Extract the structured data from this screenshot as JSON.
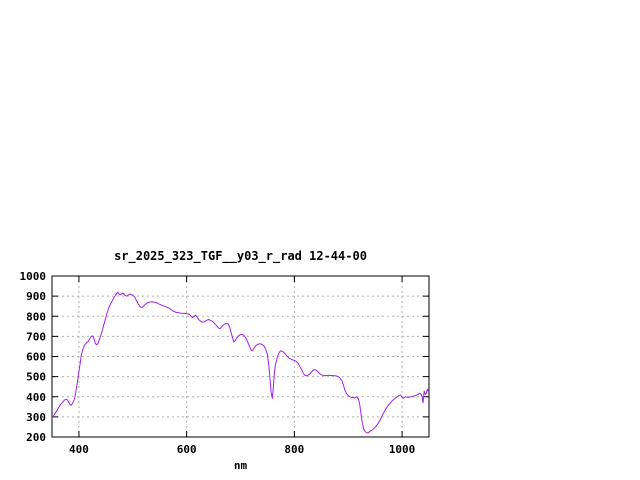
{
  "chart_data": {
    "type": "line",
    "title": "sr_2025_323_TGF__y03_r_rad 12-44-00",
    "xlabel": "nm",
    "ylabel": "",
    "xlim": [
      350,
      1050
    ],
    "ylim": [
      200,
      1000
    ],
    "xticks": [
      400,
      600,
      800,
      1000
    ],
    "yticks": [
      200,
      300,
      400,
      500,
      600,
      700,
      800,
      900,
      1000
    ],
    "grid": true,
    "legend_position": "none",
    "series": [
      {
        "name": "sr_2025_323_TGF__y03_r_rad",
        "color": "#a020f0",
        "points": [
          [
            350,
            295
          ],
          [
            353,
            305
          ],
          [
            356,
            318
          ],
          [
            359,
            330
          ],
          [
            362,
            345
          ],
          [
            365,
            358
          ],
          [
            368,
            368
          ],
          [
            371,
            378
          ],
          [
            374,
            385
          ],
          [
            377,
            388
          ],
          [
            380,
            378
          ],
          [
            383,
            362
          ],
          [
            386,
            358
          ],
          [
            389,
            372
          ],
          [
            392,
            390
          ],
          [
            394,
            420
          ],
          [
            396,
            455
          ],
          [
            398,
            490
          ],
          [
            400,
            525
          ],
          [
            402,
            560
          ],
          [
            404,
            600
          ],
          [
            406,
            625
          ],
          [
            408,
            640
          ],
          [
            410,
            655
          ],
          [
            412,
            662
          ],
          [
            414,
            668
          ],
          [
            417,
            675
          ],
          [
            420,
            688
          ],
          [
            423,
            700
          ],
          [
            425,
            703
          ],
          [
            427,
            697
          ],
          [
            429,
            678
          ],
          [
            431,
            663
          ],
          [
            433,
            658
          ],
          [
            435,
            663
          ],
          [
            437,
            678
          ],
          [
            440,
            700
          ],
          [
            443,
            725
          ],
          [
            446,
            755
          ],
          [
            449,
            785
          ],
          [
            452,
            812
          ],
          [
            455,
            838
          ],
          [
            458,
            858
          ],
          [
            461,
            872
          ],
          [
            464,
            888
          ],
          [
            467,
            900
          ],
          [
            470,
            912
          ],
          [
            472,
            920
          ],
          [
            474,
            912
          ],
          [
            476,
            906
          ],
          [
            479,
            910
          ],
          [
            482,
            915
          ],
          [
            484,
            908
          ],
          [
            486,
            903
          ],
          [
            489,
            900
          ],
          [
            492,
            906
          ],
          [
            495,
            910
          ],
          [
            498,
            907
          ],
          [
            501,
            903
          ],
          [
            504,
            893
          ],
          [
            507,
            878
          ],
          [
            510,
            862
          ],
          [
            513,
            850
          ],
          [
            516,
            843
          ],
          [
            519,
            847
          ],
          [
            522,
            856
          ],
          [
            525,
            863
          ],
          [
            528,
            868
          ],
          [
            532,
            871
          ],
          [
            536,
            872
          ],
          [
            540,
            870
          ],
          [
            544,
            868
          ],
          [
            548,
            862
          ],
          [
            552,
            857
          ],
          [
            556,
            852
          ],
          [
            560,
            849
          ],
          [
            564,
            844
          ],
          [
            568,
            840
          ],
          [
            572,
            831
          ],
          [
            576,
            824
          ],
          [
            580,
            820
          ],
          [
            585,
            817
          ],
          [
            590,
            815
          ],
          [
            595,
            814
          ],
          [
            600,
            813
          ],
          [
            605,
            810
          ],
          [
            608,
            800
          ],
          [
            611,
            794
          ],
          [
            614,
            800
          ],
          [
            617,
            806
          ],
          [
            620,
            793
          ],
          [
            623,
            782
          ],
          [
            626,
            776
          ],
          [
            629,
            770
          ],
          [
            632,
            772
          ],
          [
            635,
            776
          ],
          [
            638,
            781
          ],
          [
            641,
            784
          ],
          [
            644,
            780
          ],
          [
            647,
            776
          ],
          [
            650,
            770
          ],
          [
            653,
            760
          ],
          [
            656,
            752
          ],
          [
            659,
            742
          ],
          [
            662,
            738
          ],
          [
            665,
            748
          ],
          [
            668,
            756
          ],
          [
            671,
            762
          ],
          [
            674,
            765
          ],
          [
            677,
            762
          ],
          [
            680,
            745
          ],
          [
            683,
            715
          ],
          [
            686,
            685
          ],
          [
            688,
            672
          ],
          [
            690,
            678
          ],
          [
            693,
            692
          ],
          [
            696,
            702
          ],
          [
            699,
            708
          ],
          [
            702,
            710
          ],
          [
            705,
            708
          ],
          [
            708,
            700
          ],
          [
            711,
            688
          ],
          [
            714,
            668
          ],
          [
            717,
            648
          ],
          [
            720,
            630
          ],
          [
            723,
            632
          ],
          [
            726,
            645
          ],
          [
            729,
            655
          ],
          [
            732,
            660
          ],
          [
            735,
            663
          ],
          [
            738,
            662
          ],
          [
            741,
            658
          ],
          [
            744,
            650
          ],
          [
            747,
            635
          ],
          [
            750,
            610
          ],
          [
            753,
            550
          ],
          [
            755,
            480
          ],
          [
            757,
            420
          ],
          [
            759,
            392
          ],
          [
            761,
            450
          ],
          [
            763,
            520
          ],
          [
            765,
            560
          ],
          [
            768,
            592
          ],
          [
            771,
            615
          ],
          [
            774,
            628
          ],
          [
            777,
            627
          ],
          [
            780,
            621
          ],
          [
            783,
            614
          ],
          [
            786,
            603
          ],
          [
            789,
            595
          ],
          [
            792,
            589
          ],
          [
            795,
            585
          ],
          [
            798,
            582
          ],
          [
            801,
            580
          ],
          [
            804,
            575
          ],
          [
            807,
            566
          ],
          [
            810,
            552
          ],
          [
            813,
            537
          ],
          [
            816,
            520
          ],
          [
            819,
            508
          ],
          [
            822,
            504
          ],
          [
            825,
            506
          ],
          [
            828,
            512
          ],
          [
            831,
            520
          ],
          [
            834,
            530
          ],
          [
            837,
            535
          ],
          [
            840,
            533
          ],
          [
            843,
            526
          ],
          [
            846,
            517
          ],
          [
            849,
            511
          ],
          [
            852,
            507
          ],
          [
            855,
            505
          ],
          [
            858,
            505
          ],
          [
            861,
            506
          ],
          [
            864,
            507
          ],
          [
            867,
            506
          ],
          [
            870,
            505
          ],
          [
            874,
            505
          ],
          [
            878,
            503
          ],
          [
            882,
            499
          ],
          [
            885,
            492
          ],
          [
            888,
            480
          ],
          [
            891,
            458
          ],
          [
            894,
            432
          ],
          [
            897,
            415
          ],
          [
            900,
            406
          ],
          [
            903,
            400
          ],
          [
            906,
            398
          ],
          [
            909,
            396
          ],
          [
            912,
            394
          ],
          [
            915,
            400
          ],
          [
            917,
            396
          ],
          [
            919,
            390
          ],
          [
            921,
            368
          ],
          [
            923,
            330
          ],
          [
            925,
            290
          ],
          [
            927,
            258
          ],
          [
            929,
            238
          ],
          [
            931,
            228
          ],
          [
            934,
            222
          ],
          [
            937,
            220
          ],
          [
            940,
            228
          ],
          [
            943,
            233
          ],
          [
            946,
            238
          ],
          [
            949,
            245
          ],
          [
            952,
            255
          ],
          [
            955,
            265
          ],
          [
            958,
            278
          ],
          [
            961,
            295
          ],
          [
            964,
            312
          ],
          [
            967,
            326
          ],
          [
            970,
            340
          ],
          [
            973,
            352
          ],
          [
            976,
            362
          ],
          [
            979,
            372
          ],
          [
            982,
            381
          ],
          [
            985,
            388
          ],
          [
            988,
            394
          ],
          [
            991,
            400
          ],
          [
            994,
            405
          ],
          [
            997,
            409
          ],
          [
            1000,
            398
          ],
          [
            1002,
            392
          ],
          [
            1004,
            396
          ],
          [
            1006,
            400
          ],
          [
            1009,
            398
          ],
          [
            1012,
            397
          ],
          [
            1015,
            399
          ],
          [
            1018,
            401
          ],
          [
            1021,
            403
          ],
          [
            1024,
            405
          ],
          [
            1027,
            408
          ],
          [
            1030,
            412
          ],
          [
            1033,
            418
          ],
          [
            1035,
            412
          ],
          [
            1037,
            402
          ],
          [
            1039,
            370
          ],
          [
            1041,
            428
          ],
          [
            1043,
            412
          ],
          [
            1045,
            416
          ],
          [
            1047,
            438
          ],
          [
            1049,
            425
          ],
          [
            1050,
            428
          ]
        ]
      }
    ]
  },
  "colors": {
    "background": "#ffffff",
    "axis": "#000000",
    "grid": "#b0b0b0",
    "line": "#a020f0",
    "text": "#000000"
  }
}
